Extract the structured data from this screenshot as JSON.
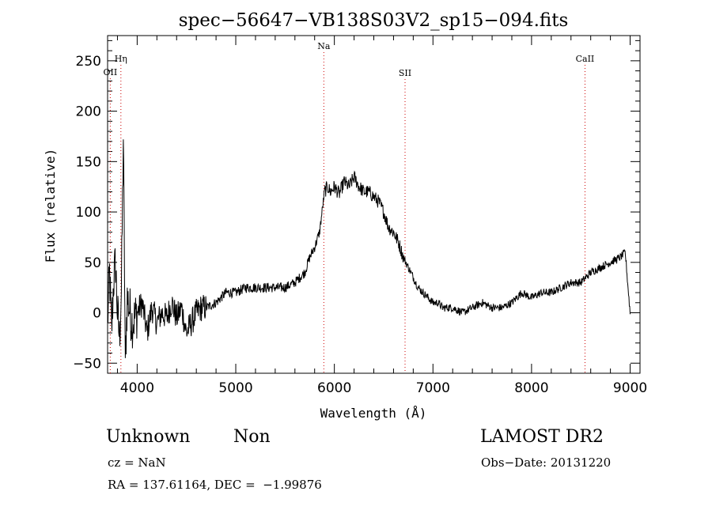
{
  "chart_data": {
    "type": "line",
    "title": "spec−56647−VB138S03V2_sp15−094.fits",
    "xlabel": "Wavelength (Å)",
    "ylabel": "Flux (relative)",
    "xlim": [
      3700,
      9100
    ],
    "ylim": [
      -60,
      275
    ],
    "xticks": [
      4000,
      5000,
      6000,
      7000,
      8000,
      9000
    ],
    "yticks": [
      -50,
      0,
      50,
      100,
      150,
      200,
      250
    ],
    "line_color": "#000000",
    "marker_color": "#cc0000",
    "grid": false,
    "series": [
      {
        "x": [
          3700,
          3720,
          3740,
          3760,
          3780,
          3800,
          3820,
          3840,
          3860,
          3880,
          3900,
          3950,
          4000,
          4050,
          4100,
          4150,
          4200,
          4250,
          4300,
          4350,
          4400,
          4450,
          4500,
          4550,
          4600,
          4650,
          4700,
          4800,
          4900,
          5000,
          5100,
          5200,
          5300,
          5400,
          5500,
          5600,
          5700,
          5750,
          5800,
          5850,
          5900,
          5930,
          5960,
          6000,
          6050,
          6100,
          6150,
          6200,
          6250,
          6300,
          6350,
          6400,
          6450,
          6500,
          6550,
          6600,
          6650,
          6700,
          6750,
          6800,
          6850,
          6900,
          6950,
          7000,
          7050,
          7100,
          7200,
          7300,
          7400,
          7500,
          7600,
          7700,
          7800,
          7900,
          8000,
          8100,
          8200,
          8300,
          8400,
          8500,
          8600,
          8700,
          8800,
          8900,
          8950,
          9000
        ],
        "values": [
          -10,
          40,
          -20,
          30,
          50,
          0,
          -25,
          20,
          172,
          -45,
          15,
          -10,
          0,
          10,
          -20,
          5,
          -10,
          0,
          -5,
          10,
          -5,
          5,
          -20,
          -10,
          0,
          5,
          5,
          10,
          20,
          20,
          25,
          25,
          25,
          25,
          25,
          30,
          40,
          55,
          65,
          80,
          120,
          125,
          120,
          125,
          118,
          130,
          125,
          135,
          125,
          120,
          120,
          115,
          110,
          100,
          85,
          80,
          70,
          55,
          45,
          35,
          25,
          20,
          15,
          10,
          10,
          5,
          5,
          0,
          5,
          10,
          5,
          5,
          10,
          20,
          15,
          20,
          20,
          25,
          30,
          30,
          40,
          45,
          50,
          55,
          60,
          0
        ],
        "samples": [
          -22,
          48,
          -35,
          25,
          52,
          -3,
          -33,
          10,
          172,
          -45,
          20,
          -20,
          5,
          15,
          -28,
          10,
          -30,
          12,
          -8,
          18,
          -15,
          10,
          -30,
          -5,
          -12,
          8,
          -2,
          18,
          12,
          28,
          20,
          30,
          18,
          34,
          22,
          36,
          42,
          58,
          70,
          85,
          125,
          115,
          130,
          118,
          132,
          122,
          140,
          128,
          145,
          120,
          128,
          112,
          118,
          96,
          92,
          74,
          80,
          48,
          50,
          30,
          30,
          16,
          20,
          8,
          14,
          2,
          10,
          -4,
          8,
          14,
          0,
          12,
          6,
          24,
          10,
          26,
          14,
          30,
          22,
          36,
          34,
          48,
          44,
          60,
          64,
          5
        ]
      }
    ],
    "lines": [
      {
        "label": "OII",
        "x": 3727
      },
      {
        "label": "Hη",
        "x": 3835
      },
      {
        "label": "Na",
        "x": 5893
      },
      {
        "label": "SII",
        "x": 6717
      },
      {
        "label": "CaII",
        "x": 8542
      }
    ]
  },
  "info": {
    "class": "Unknown",
    "subclass": "Non",
    "cz": "cz = NaN",
    "radec": "RA = 137.61164, DEC =  −1.99876",
    "survey": "LAMOST DR2",
    "obsdate": "Obs−Date: 20131220"
  }
}
